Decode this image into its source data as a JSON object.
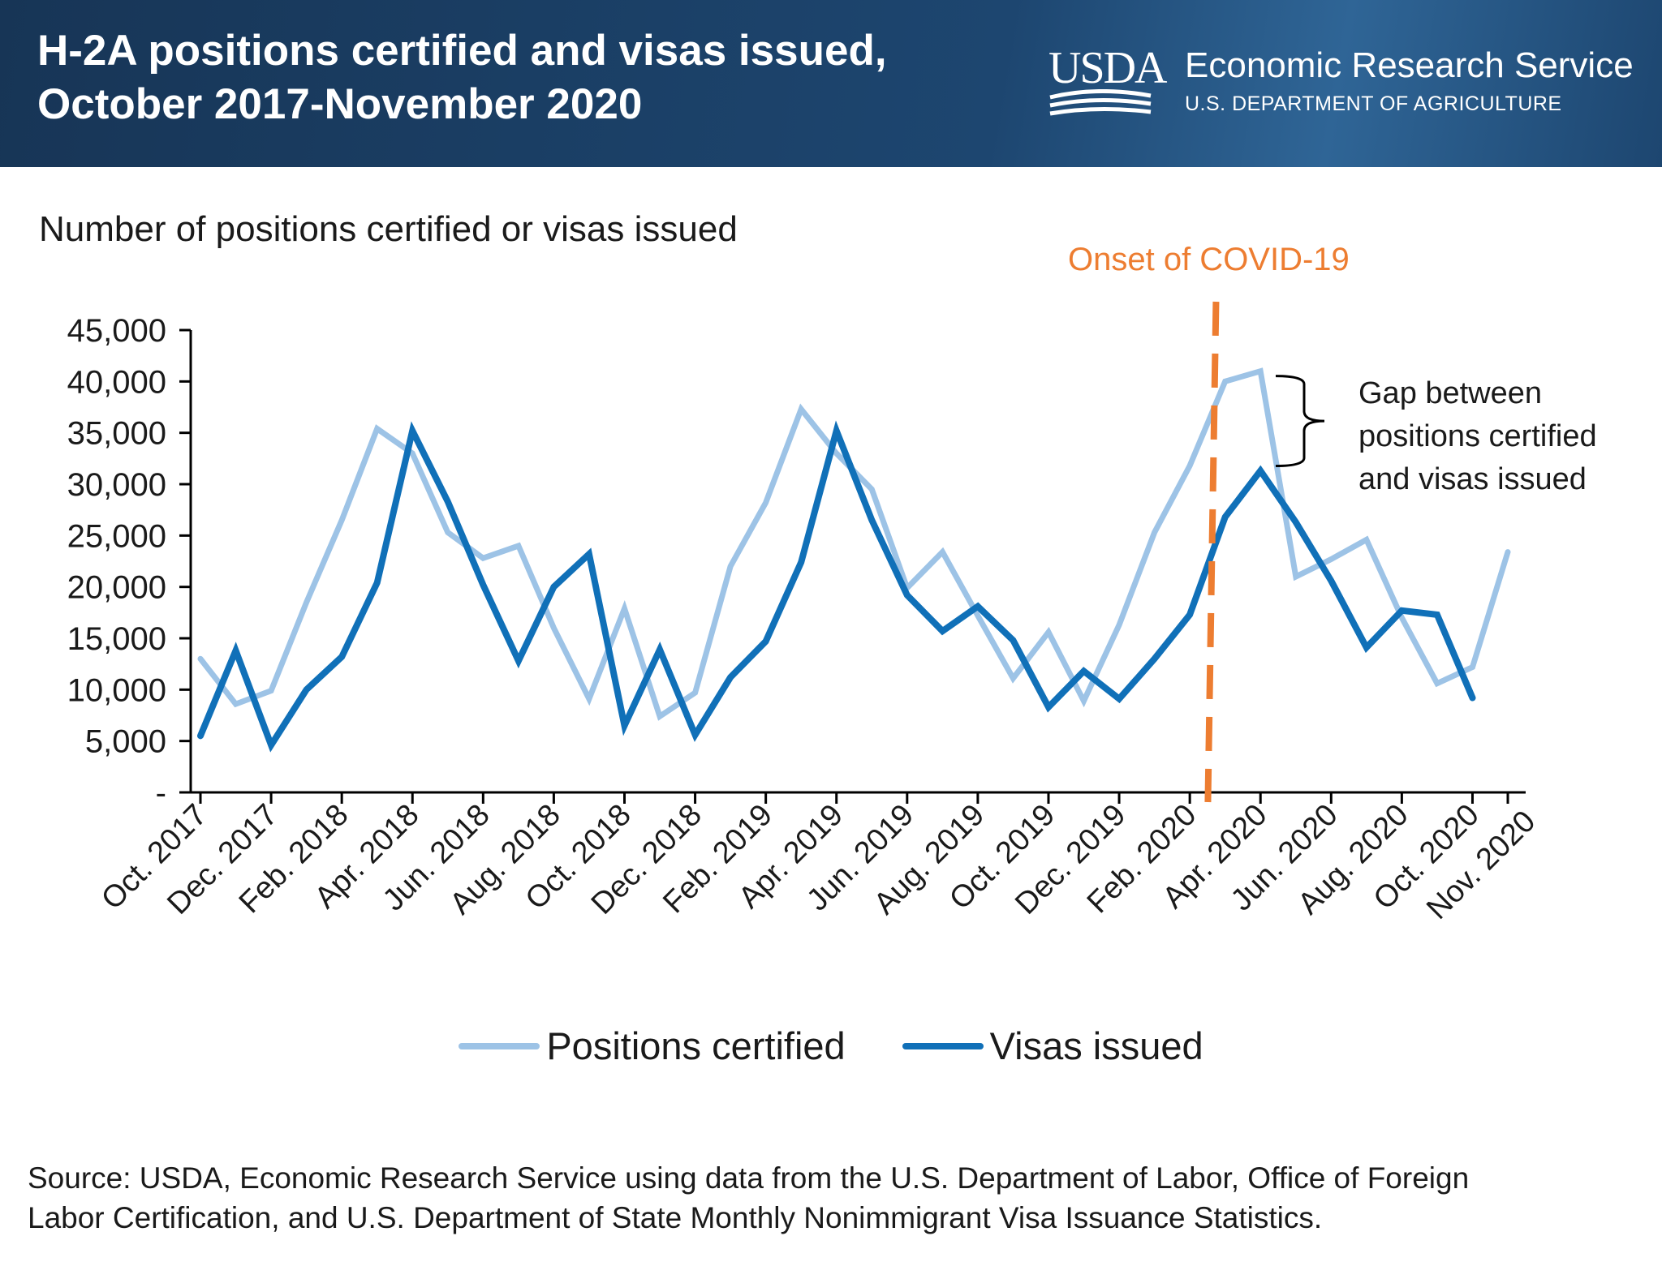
{
  "header": {
    "title_line1": "H-2A positions certified and visas issued,",
    "title_line2": "October 2017-November 2020",
    "logo_text": "USDA",
    "agency": "Economic Research Service",
    "department": "U.S. DEPARTMENT OF AGRICULTURE"
  },
  "source": {
    "line1": "Source: USDA, Economic Research Service using data from the U.S. Department of Labor, Office of  Foreign",
    "line2": "Labor Certification, and U.S. Department of State Monthly Nonimmigrant Visa Issuance Statistics."
  },
  "chart_data": {
    "type": "line",
    "title": "H-2A positions certified and visas issued, October 2017-November 2020",
    "ylabel": "Number of positions certified or visas issued",
    "xlabel": "",
    "ylim": [
      0,
      45000
    ],
    "yticks": [
      0,
      5000,
      10000,
      15000,
      20000,
      25000,
      30000,
      35000,
      40000,
      45000
    ],
    "ytick_labels": [
      "-",
      "5,000",
      "10,000",
      "15,000",
      "20,000",
      "25,000",
      "30,000",
      "35,000",
      "40,000",
      "45,000"
    ],
    "grid": false,
    "legend_position": "bottom",
    "x": [
      "Oct. 2017",
      "Nov. 2017",
      "Dec. 2017",
      "Jan. 2018",
      "Feb. 2018",
      "Mar. 2018",
      "Apr. 2018",
      "May 2018",
      "Jun. 2018",
      "Jul. 2018",
      "Aug. 2018",
      "Sep. 2018",
      "Oct. 2018",
      "Nov. 2018",
      "Dec. 2018",
      "Jan. 2019",
      "Feb. 2019",
      "Mar. 2019",
      "Apr. 2019",
      "May 2019",
      "Jun. 2019",
      "Jul. 2019",
      "Aug. 2019",
      "Sep. 2019",
      "Oct. 2019",
      "Nov. 2019",
      "Dec. 2019",
      "Jan. 2020",
      "Feb. 2020",
      "Mar. 2020",
      "Apr. 2020",
      "May 2020",
      "Jun. 2020",
      "Jul. 2020",
      "Aug. 2020",
      "Sep. 2020",
      "Oct. 2020",
      "Nov. 2020"
    ],
    "xtick_labels": [
      "Oct. 2017",
      "Dec. 2017",
      "Feb. 2018",
      "Apr. 2018",
      "Jun. 2018",
      "Aug. 2018",
      "Oct. 2018",
      "Dec. 2018",
      "Feb. 2019",
      "Apr. 2019",
      "Jun. 2019",
      "Aug. 2019",
      "Oct. 2019",
      "Dec. 2019",
      "Feb. 2020",
      "Apr. 2020",
      "Jun. 2020",
      "Aug. 2020",
      "Oct. 2020",
      "Nov. 2020"
    ],
    "series": [
      {
        "name": "Positions certified",
        "color": "#9dc3e6",
        "values": [
          13000,
          8600,
          9900,
          18500,
          26500,
          35400,
          33000,
          25300,
          22800,
          24000,
          16000,
          9100,
          17900,
          7400,
          9700,
          22000,
          28200,
          37300,
          33000,
          29500,
          19900,
          23400,
          17200,
          11100,
          15600,
          8900,
          16300,
          25300,
          31800,
          40000,
          41000,
          21000,
          22700,
          24600,
          17000,
          10600,
          12200,
          23400
        ]
      },
      {
        "name": "Visas issued",
        "color": "#1070b8",
        "values": [
          5500,
          13800,
          4600,
          10000,
          13200,
          20400,
          35200,
          28300,
          20200,
          12800,
          20000,
          23200,
          6500,
          13900,
          5600,
          11200,
          14700,
          22400,
          35200,
          26500,
          19200,
          15700,
          18100,
          14800,
          8300,
          11800,
          9100,
          13000,
          17300,
          26800,
          31300,
          26300,
          20600,
          14100,
          17700,
          17300,
          9200,
          null
        ]
      }
    ],
    "annotations": [
      {
        "text": "Onset of COVID-19",
        "type": "vertical-dashed-line",
        "x": "between Feb. 2020 and Mar. 2020",
        "color": "#ed7d31"
      },
      {
        "text": "Gap between positions certified and visas issued",
        "type": "brace",
        "x": "Apr. 2020"
      }
    ]
  }
}
